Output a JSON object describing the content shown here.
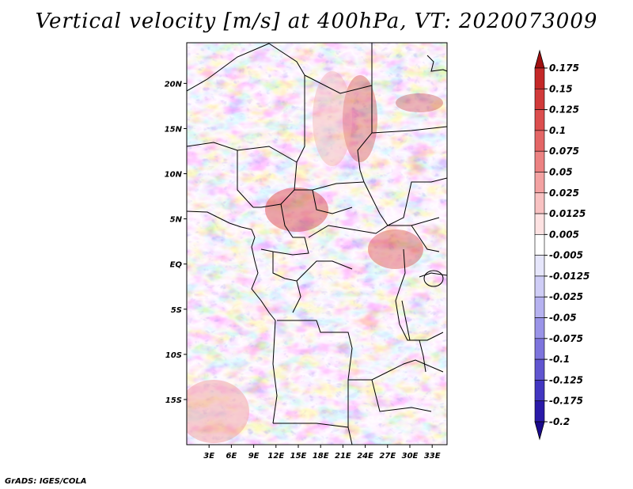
{
  "title": "Vertical velocity [m/s] at 400hPa, VT: 2020073009",
  "footer": "GrADS: IGES/COLA",
  "map": {
    "lat_labels": [
      "20N",
      "15N",
      "10N",
      "5N",
      "EQ",
      "5S",
      "10S",
      "15S"
    ],
    "lon_labels": [
      "3E",
      "6E",
      "9E",
      "12E",
      "15E",
      "18E",
      "21E",
      "24E",
      "27E",
      "30E",
      "33E"
    ],
    "lat_range": [
      -20,
      24.5
    ],
    "lon_range": [
      0,
      35
    ]
  },
  "colorbar": {
    "labels": [
      "0.175",
      "0.15",
      "0.125",
      "0.1",
      "0.075",
      "0.05",
      "0.025",
      "0.0125",
      "0.005",
      "-0.005",
      "-0.0125",
      "-0.025",
      "-0.05",
      "-0.075",
      "-0.1",
      "-0.125",
      "-0.175",
      "-0.2"
    ],
    "colors": [
      "#b01a1a",
      "#c42828",
      "#d13a3a",
      "#dc4e4e",
      "#e46666",
      "#ec8282",
      "#f3a2a2",
      "#f8c2c2",
      "#fde2e2",
      "#ffffff",
      "#e6e6fb",
      "#cfcdf6",
      "#b6b2f0",
      "#9a94e8",
      "#7d74dd",
      "#6055d0",
      "#4236c1",
      "#2a1aa8",
      "#1a0a8c"
    ],
    "top_arrow_color": "#a01010",
    "bottom_arrow_color": "#1a0a8c"
  }
}
